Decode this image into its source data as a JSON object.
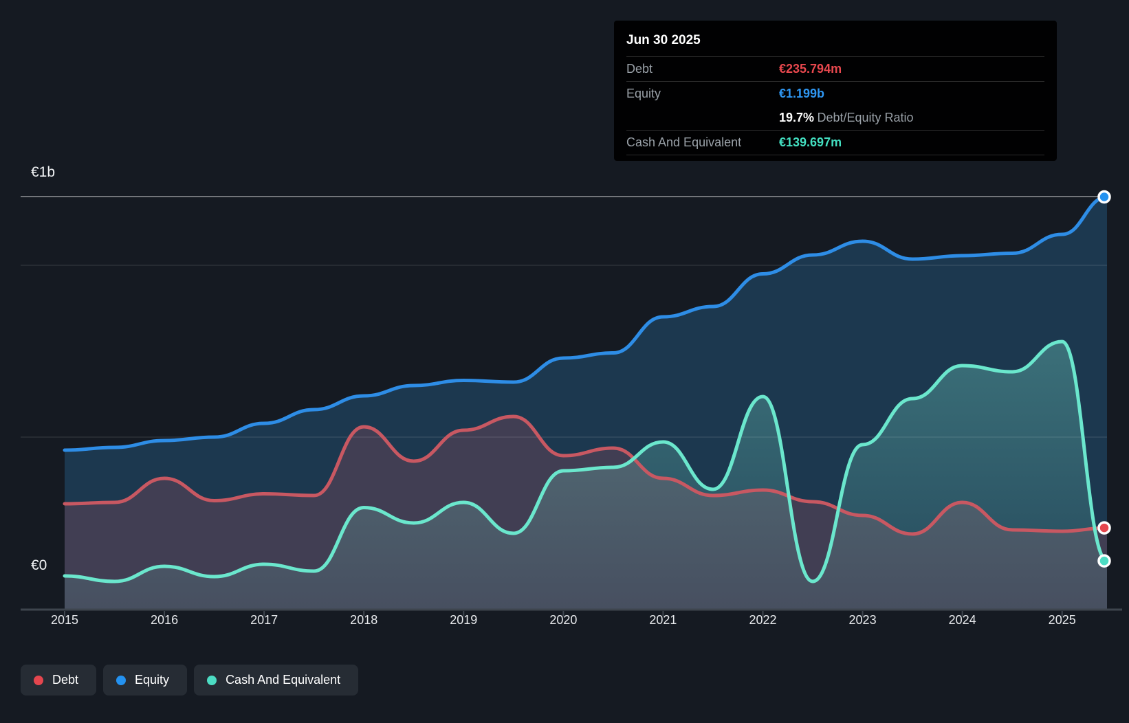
{
  "y_axis": {
    "labels": [
      "€1b",
      "€0"
    ]
  },
  "x_axis": {
    "labels": [
      "2015",
      "2016",
      "2017",
      "2018",
      "2019",
      "2020",
      "2021",
      "2022",
      "2023",
      "2024",
      "2025"
    ]
  },
  "tooltip": {
    "date": "Jun 30 2025",
    "rows": [
      {
        "label": "Debt",
        "value": "€235.794m",
        "color": "#e8484e"
      },
      {
        "label": "Equity",
        "value": "€1.199b",
        "color": "#2f97f3"
      },
      {
        "label": "Cash And Equivalent",
        "value": "€139.697m",
        "color": "#43dfc1"
      }
    ],
    "ratio_value": "19.7%",
    "ratio_label": "Debt/Equity Ratio"
  },
  "legend": {
    "items": [
      {
        "label": "Debt",
        "color": "#e4464e"
      },
      {
        "label": "Equity",
        "color": "#2492f0"
      },
      {
        "label": "Cash And Equivalent",
        "color": "#4cdcc3"
      }
    ]
  },
  "chart_data": {
    "type": "area",
    "title": "Debt to Equity History",
    "unit": "EUR millions",
    "xlim": [
      2015,
      2025.45
    ],
    "ylim": [
      0,
      1200
    ],
    "gridlines": [
      1200,
      1000,
      500
    ],
    "grid_bright_value": 1200,
    "x": [
      2015,
      2015.5,
      2016,
      2016.5,
      2017,
      2017.5,
      2018,
      2018.5,
      2019,
      2019.5,
      2020,
      2020.5,
      2021,
      2021.5,
      2022,
      2022.5,
      2023,
      2023.5,
      2024,
      2024.5,
      2025,
      2025.45
    ],
    "series": [
      {
        "name": "Equity",
        "color": "#2e8de6",
        "fill": "#1d3b54",
        "fill_opacity": 0.92,
        "values": [
          462,
          470,
          490,
          500,
          540,
          580,
          620,
          650,
          665,
          660,
          730,
          745,
          850,
          880,
          975,
          1030,
          1070,
          1018,
          1028,
          1035,
          1090,
          1199
        ],
        "last_value_label": "€1.199b"
      },
      {
        "name": "Debt",
        "color": "#c85862",
        "fill": "rgba(200,88,98,0.22)",
        "fill_opacity": 1,
        "values": [
          306,
          310,
          380,
          315,
          335,
          330,
          530,
          430,
          520,
          560,
          446,
          468,
          380,
          330,
          346,
          312,
          272,
          218,
          310,
          230,
          226,
          235.794
        ],
        "last_value_label": "€235.794m"
      },
      {
        "name": "Cash And Equivalent",
        "color": "#6be7cd",
        "fill": "gradient-cash",
        "fill_opacity": 1,
        "values": [
          96,
          80,
          124,
          94,
          130,
          110,
          295,
          250,
          310,
          220,
          402,
          412,
          486,
          348,
          618,
          80,
          478,
          612,
          708,
          690,
          778,
          139.697
        ],
        "last_value_label": "€139.697m"
      }
    ]
  }
}
